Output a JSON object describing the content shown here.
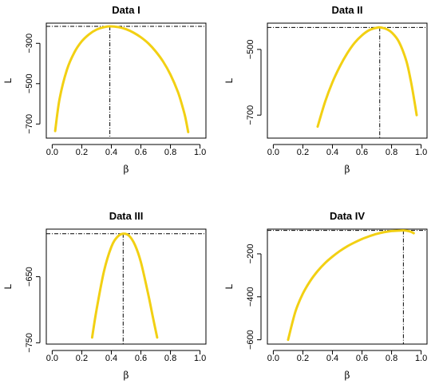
{
  "chart_data": [
    {
      "type": "line",
      "title": "Data I",
      "xlabel": "β",
      "ylabel": "L",
      "xlim": [
        0.0,
        1.0
      ],
      "ylim": [
        -770,
        -200
      ],
      "x_ticks": [
        0.0,
        0.2,
        0.4,
        0.6,
        0.8,
        1.0
      ],
      "x_tick_labels": [
        "0.0",
        "0.2",
        "0.4",
        "0.6",
        "0.8",
        "1.0"
      ],
      "y_ticks": [
        -300,
        -500,
        -700
      ],
      "y_tick_labels": [
        "−300",
        "−500",
        "−700"
      ],
      "series": [
        {
          "x": [
            0.02,
            0.05,
            0.1,
            0.15,
            0.2,
            0.25,
            0.3,
            0.35,
            0.39,
            0.45,
            0.5,
            0.55,
            0.6,
            0.65,
            0.7,
            0.75,
            0.8,
            0.85,
            0.88,
            0.9,
            0.92
          ],
          "y": [
            -735,
            -575,
            -430,
            -345,
            -290,
            -255,
            -232,
            -220,
            -216,
            -220,
            -230,
            -247,
            -270,
            -300,
            -340,
            -390,
            -455,
            -540,
            -610,
            -665,
            -740
          ]
        }
      ],
      "max_x": 0.39,
      "max_y": -216
    },
    {
      "type": "line",
      "title": "Data II",
      "xlabel": "β",
      "ylabel": "L",
      "xlim": [
        0.0,
        1.0
      ],
      "ylim": [
        -770,
        -420
      ],
      "x_ticks": [
        0.0,
        0.2,
        0.4,
        0.6,
        0.8,
        1.0
      ],
      "x_tick_labels": [
        "0.0",
        "0.2",
        "0.4",
        "0.6",
        "0.8",
        "1.0"
      ],
      "y_ticks": [
        -500,
        -700
      ],
      "y_tick_labels": [
        "−500",
        "−700"
      ],
      "series": [
        {
          "x": [
            0.3,
            0.35,
            0.4,
            0.45,
            0.5,
            0.55,
            0.6,
            0.65,
            0.7,
            0.72,
            0.76,
            0.8,
            0.85,
            0.9,
            0.93,
            0.95,
            0.97
          ],
          "y": [
            -735,
            -660,
            -600,
            -552,
            -512,
            -480,
            -457,
            -441,
            -434,
            -433,
            -437,
            -448,
            -477,
            -535,
            -595,
            -645,
            -700
          ]
        }
      ],
      "max_x": 0.72,
      "max_y": -433
    },
    {
      "type": "line",
      "title": "Data III",
      "xlabel": "β",
      "ylabel": "L",
      "xlim": [
        0.0,
        1.0
      ],
      "ylim": [
        -752,
        -578
      ],
      "x_ticks": [
        0.0,
        0.2,
        0.4,
        0.6,
        0.8,
        1.0
      ],
      "x_tick_labels": [
        "0.0",
        "0.2",
        "0.4",
        "0.6",
        "0.8",
        "1.0"
      ],
      "y_ticks": [
        -650,
        -750
      ],
      "y_tick_labels": [
        "−650",
        "−750"
      ],
      "series": [
        {
          "x": [
            0.27,
            0.3,
            0.35,
            0.4,
            0.44,
            0.48,
            0.52,
            0.56,
            0.6,
            0.65,
            0.68,
            0.71
          ],
          "y": [
            -742,
            -700,
            -642,
            -605,
            -590,
            -585,
            -588,
            -602,
            -628,
            -677,
            -710,
            -742
          ]
        }
      ],
      "max_x": 0.48,
      "max_y": -585
    },
    {
      "type": "line",
      "title": "Data IV",
      "xlabel": "β",
      "ylabel": "L",
      "xlim": [
        0.0,
        1.0
      ],
      "ylim": [
        -620,
        -85
      ],
      "x_ticks": [
        0.0,
        0.2,
        0.4,
        0.6,
        0.8,
        1.0
      ],
      "x_tick_labels": [
        "0.0",
        "0.2",
        "0.4",
        "0.6",
        "0.8",
        "1.0"
      ],
      "y_ticks": [
        -200,
        -400,
        -600
      ],
      "y_tick_labels": [
        "−200",
        "−400",
        "−600"
      ],
      "series": [
        {
          "x": [
            0.1,
            0.15,
            0.2,
            0.25,
            0.3,
            0.35,
            0.4,
            0.45,
            0.5,
            0.55,
            0.6,
            0.65,
            0.7,
            0.75,
            0.8,
            0.85,
            0.88,
            0.9,
            0.93,
            0.95
          ],
          "y": [
            -600,
            -468,
            -385,
            -326,
            -280,
            -243,
            -213,
            -187,
            -165,
            -147,
            -131,
            -118,
            -107,
            -99,
            -94,
            -92,
            -91,
            -92,
            -97,
            -104
          ]
        }
      ],
      "max_x": 0.88,
      "max_y": -91
    }
  ],
  "colors": {
    "curve": "#f2d013",
    "axis": "#000000",
    "reference_lines": "#000000"
  }
}
